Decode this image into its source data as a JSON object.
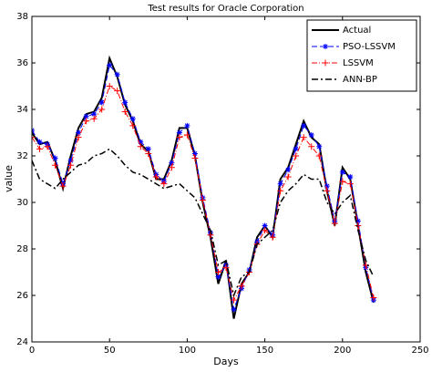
{
  "chart_data": {
    "type": "line",
    "title": "Test results for Oracle Corporation",
    "x_label": "Days",
    "y_label": "value",
    "x": [
      0,
      5,
      10,
      15,
      20,
      25,
      30,
      35,
      40,
      45,
      50,
      55,
      60,
      65,
      70,
      75,
      80,
      85,
      90,
      95,
      100,
      105,
      110,
      115,
      120,
      125,
      130,
      135,
      140,
      145,
      150,
      155,
      160,
      165,
      170,
      175,
      180,
      185,
      190,
      195,
      200,
      205,
      210,
      215,
      220
    ],
    "series": [
      {
        "name": "Actual",
        "color": "#000000",
        "dash": "none",
        "width": 2,
        "marker": "none",
        "values": [
          33.0,
          32.5,
          32.6,
          31.8,
          30.6,
          32.0,
          33.2,
          33.8,
          33.9,
          34.5,
          36.2,
          35.4,
          34.2,
          33.5,
          32.5,
          32.2,
          31.0,
          31.0,
          31.8,
          33.2,
          33.2,
          32.0,
          30.0,
          28.5,
          26.5,
          27.5,
          25.0,
          26.5,
          27.0,
          28.5,
          29.0,
          28.5,
          31.0,
          31.5,
          32.5,
          33.5,
          32.8,
          32.5,
          30.5,
          29.0,
          31.5,
          31.0,
          29.0,
          27.0,
          25.7
        ]
      },
      {
        "name": "PSO-LSSVM",
        "color": "#0000ff",
        "dash": "6 3",
        "width": 1,
        "marker": "star",
        "values": [
          33.1,
          32.6,
          32.5,
          31.9,
          30.8,
          31.8,
          33.0,
          33.7,
          33.8,
          34.3,
          35.9,
          35.5,
          34.3,
          33.6,
          32.6,
          32.3,
          31.2,
          30.9,
          31.7,
          33.0,
          33.3,
          32.1,
          30.2,
          28.7,
          26.8,
          27.3,
          25.4,
          26.3,
          27.1,
          28.3,
          29.0,
          28.6,
          30.8,
          31.4,
          32.3,
          33.3,
          32.9,
          32.4,
          30.7,
          29.2,
          31.3,
          31.1,
          29.2,
          27.2,
          25.8
        ]
      },
      {
        "name": "LSSVM",
        "color": "#ff0000",
        "dash": "6 2 1 2",
        "width": 1,
        "marker": "plus",
        "values": [
          32.8,
          32.3,
          32.4,
          31.6,
          30.7,
          31.6,
          32.8,
          33.5,
          33.6,
          34.0,
          35.0,
          34.8,
          33.9,
          33.3,
          32.4,
          32.1,
          31.1,
          30.8,
          31.5,
          32.8,
          32.9,
          31.9,
          30.1,
          28.6,
          27.0,
          27.2,
          25.8,
          26.4,
          27.0,
          28.2,
          28.8,
          28.5,
          30.5,
          31.1,
          32.0,
          32.8,
          32.4,
          32.0,
          30.5,
          29.1,
          30.9,
          30.8,
          29.0,
          27.3,
          25.9
        ]
      },
      {
        "name": "ANN-BP",
        "color": "#000000",
        "dash": "7 3 2 3",
        "width": 1.5,
        "marker": "none",
        "values": [
          31.8,
          31.0,
          30.8,
          30.6,
          31.0,
          31.3,
          31.6,
          31.7,
          32.0,
          32.1,
          32.3,
          32.0,
          31.6,
          31.3,
          31.2,
          31.0,
          30.8,
          30.6,
          30.7,
          30.8,
          30.5,
          30.2,
          29.5,
          28.8,
          27.3,
          27.5,
          26.0,
          26.8,
          27.0,
          28.2,
          28.5,
          28.8,
          30.0,
          30.5,
          30.8,
          31.2,
          31.0,
          31.0,
          30.0,
          29.5,
          30.0,
          30.3,
          28.8,
          27.5,
          26.8
        ]
      }
    ],
    "xlim": [
      0,
      250
    ],
    "xticks": [
      0,
      50,
      100,
      150,
      200,
      250
    ],
    "ylim": [
      24,
      38
    ],
    "yticks": [
      24,
      26,
      28,
      30,
      32,
      34,
      36,
      38
    ],
    "legend": "upper right",
    "grid": false
  }
}
